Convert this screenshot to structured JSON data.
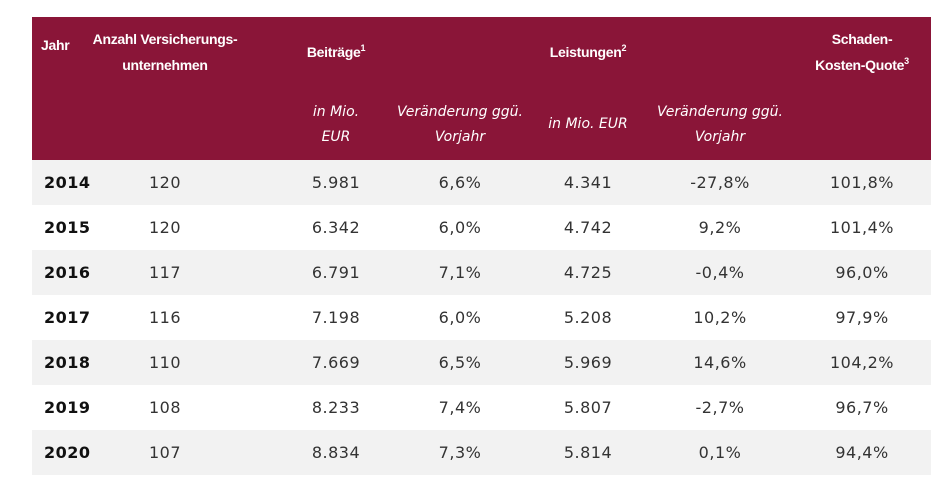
{
  "header": {
    "jahr": "Jahr",
    "anzahl_line1": "Anzahl Versicherungs-",
    "anzahl_line2": "unternehmen",
    "beitraege": "Beiträge",
    "beitraege_note": "1",
    "leistungen": "Leistungen",
    "leistungen_note": "2",
    "quote_line1": "Schaden-",
    "quote_line2": "Kosten-Quote",
    "quote_note": "3",
    "beitraege_unit_line1": "in Mio.",
    "beitraege_unit_line2": "EUR",
    "beitraege_change_line1": "Veränderung ggü.",
    "beitraege_change_line2": "Vorjahr",
    "leistungen_unit": "in Mio. EUR",
    "leistungen_change_line1": "Veränderung  ggü.",
    "leistungen_change_line2": "Vorjahr"
  },
  "rows": [
    {
      "jahr": "2014",
      "anzahl": "120",
      "beitraege": "5.981",
      "beitraege_change": "6,6%",
      "leistungen": "4.341",
      "leistungen_change": "-27,8%",
      "quote": "101,8%"
    },
    {
      "jahr": "2015",
      "anzahl": "120",
      "beitraege": "6.342",
      "beitraege_change": "6,0%",
      "leistungen": "4.742",
      "leistungen_change": "9,2%",
      "quote": "101,4%"
    },
    {
      "jahr": "2016",
      "anzahl": "117",
      "beitraege": "6.791",
      "beitraege_change": "7,1%",
      "leistungen": "4.725",
      "leistungen_change": "-0,4%",
      "quote": "96,0%"
    },
    {
      "jahr": "2017",
      "anzahl": "116",
      "beitraege": "7.198",
      "beitraege_change": "6,0%",
      "leistungen": "5.208",
      "leistungen_change": "10,2%",
      "quote": "97,9%"
    },
    {
      "jahr": "2018",
      "anzahl": "110",
      "beitraege": "7.669",
      "beitraege_change": "6,5%",
      "leistungen": "5.969",
      "leistungen_change": "14,6%",
      "quote": "104,2%"
    },
    {
      "jahr": "2019",
      "anzahl": "108",
      "beitraege": "8.233",
      "beitraege_change": "7,4%",
      "leistungen": "5.807",
      "leistungen_change": "-2,7%",
      "quote": "96,7%"
    },
    {
      "jahr": "2020",
      "anzahl": "107",
      "beitraege": "8.834",
      "beitraege_change": "7,3%",
      "leistungen": "5.814",
      "leistungen_change": "0,1%",
      "quote": "94,4%"
    }
  ],
  "colors": {
    "header_bg": "#8a1538",
    "alt_row": "#f2f2f2"
  }
}
